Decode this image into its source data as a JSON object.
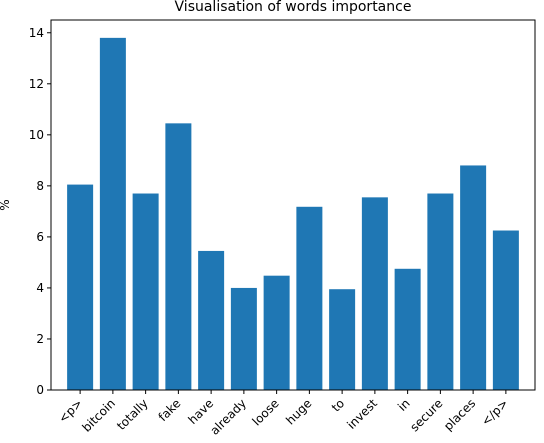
{
  "chart_data": {
    "type": "bar",
    "title": "Visualisation of words importance",
    "xlabel": "",
    "ylabel": "%",
    "categories": [
      "<p>",
      "bitcoin",
      "totally",
      "fake",
      "have",
      "already",
      "loose",
      "huge",
      "to",
      "invest",
      "in",
      "secure",
      "places",
      "</p>"
    ],
    "values": [
      8.05,
      13.8,
      7.7,
      10.45,
      5.45,
      4.0,
      4.48,
      7.18,
      3.95,
      7.55,
      4.75,
      7.7,
      8.8,
      6.25
    ],
    "ylim": [
      0,
      14.5
    ],
    "yticks": [
      0,
      2,
      4,
      6,
      8,
      10,
      12,
      14
    ],
    "grid": false,
    "bar_color": "#1f77b4",
    "x_tick_rotation": -45
  }
}
